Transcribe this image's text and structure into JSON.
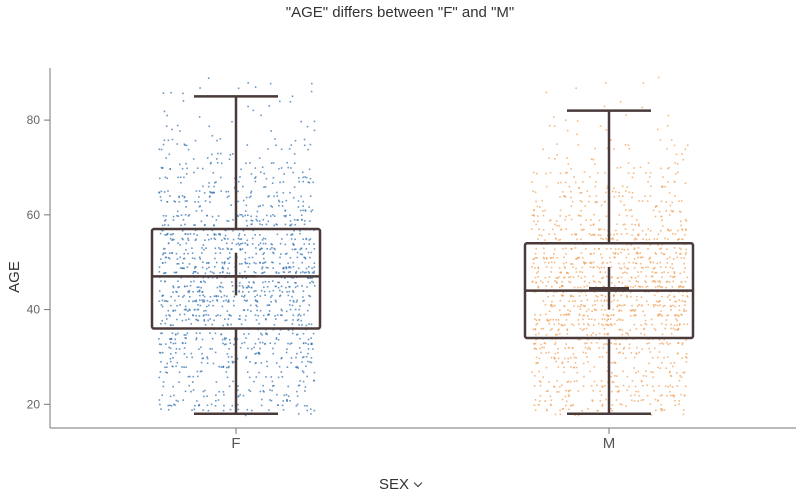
{
  "chart_data": {
    "type": "box",
    "title": "\"AGE\" differs between \"F\" and \"M\"",
    "xlabel": "SEX",
    "ylabel": "AGE",
    "categories": [
      "F",
      "M"
    ],
    "ylim": [
      15,
      91
    ],
    "yticks": [
      20,
      40,
      60,
      80
    ],
    "grid": false,
    "legend": "none",
    "colors": {
      "F": "#3a75b0",
      "M": "#f0a35e",
      "box": "#4a3a3a"
    },
    "series": [
      {
        "name": "F",
        "min": 18,
        "q1": 36,
        "median": 47,
        "q3": 57,
        "max": 85,
        "mean": 47,
        "mean_ci": [
          43,
          52
        ],
        "point_range": [
          18,
          89
        ]
      },
      {
        "name": "M",
        "min": 18,
        "q1": 34,
        "median": 44,
        "q3": 54,
        "max": 82,
        "mean": 44.5,
        "mean_ci": [
          40,
          49
        ],
        "point_range": [
          18,
          89
        ]
      }
    ]
  }
}
